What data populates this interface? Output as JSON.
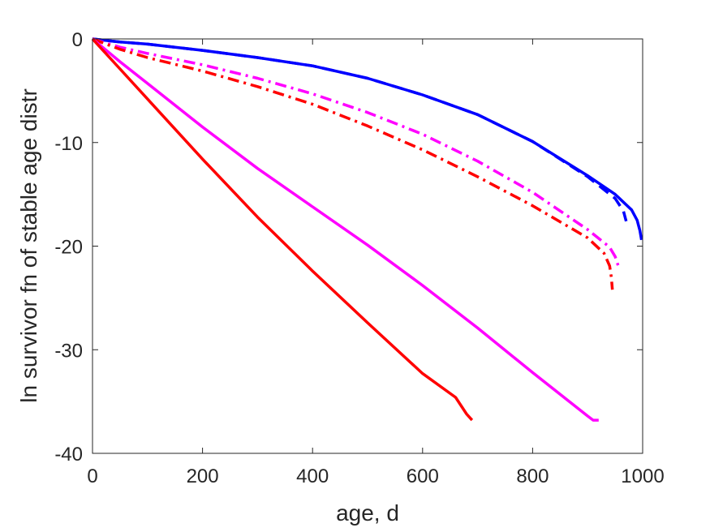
{
  "chart_data": {
    "type": "line",
    "title": "",
    "xlabel": "age, d",
    "ylabel": "ln survivor fn of stable age distr",
    "xlim": [
      0,
      1000
    ],
    "ylim": [
      -40,
      0
    ],
    "xticks": [
      0,
      200,
      400,
      600,
      800,
      1000
    ],
    "yticks": [
      0,
      -10,
      -20,
      -30,
      -40
    ],
    "grid": false,
    "legend": "none",
    "series": [
      {
        "color": "#0000ff",
        "style": "solid",
        "x": [
          0,
          50,
          100,
          200,
          300,
          400,
          500,
          600,
          700,
          800,
          900,
          950,
          980,
          990,
          995,
          998
        ],
        "y": [
          0,
          -0.3,
          -0.5,
          -1.1,
          -1.8,
          -2.6,
          -3.8,
          -5.4,
          -7.3,
          -9.9,
          -13.2,
          -15.0,
          -16.5,
          -17.5,
          -18.5,
          -19.4
        ]
      },
      {
        "color": "#0000ff",
        "style": "dashed",
        "x": [
          0,
          50,
          100,
          200,
          300,
          400,
          500,
          600,
          700,
          800,
          900,
          950,
          965,
          970
        ],
        "y": [
          0,
          -0.3,
          -0.5,
          -1.1,
          -1.8,
          -2.6,
          -3.8,
          -5.4,
          -7.3,
          -9.9,
          -13.3,
          -15.4,
          -16.6,
          -17.6
        ]
      },
      {
        "color": "#ff00ff",
        "style": "dashdot",
        "x": [
          0,
          50,
          100,
          200,
          300,
          400,
          500,
          600,
          700,
          800,
          900,
          940,
          950,
          955,
          958
        ],
        "y": [
          0,
          -0.8,
          -1.4,
          -2.5,
          -3.8,
          -5.3,
          -7.1,
          -9.2,
          -11.8,
          -14.8,
          -18.4,
          -20.1,
          -21.0,
          -21.8,
          -22.2
        ]
      },
      {
        "color": "#ff0000",
        "style": "dashdot",
        "x": [
          0,
          50,
          100,
          200,
          300,
          400,
          500,
          600,
          700,
          800,
          900,
          930,
          940,
          943,
          945
        ],
        "y": [
          0,
          -1.0,
          -1.8,
          -3.1,
          -4.6,
          -6.3,
          -8.4,
          -10.7,
          -13.3,
          -16.1,
          -19.2,
          -20.7,
          -21.9,
          -23.0,
          -24.2
        ]
      },
      {
        "color": "#ff00ff",
        "style": "solid",
        "x": [
          0,
          50,
          100,
          200,
          300,
          400,
          500,
          600,
          700,
          800,
          900,
          910,
          920
        ],
        "y": [
          0,
          -2.2,
          -4.3,
          -8.5,
          -12.5,
          -16.2,
          -19.9,
          -23.8,
          -27.9,
          -32.2,
          -36.4,
          -36.8,
          -36.8
        ]
      },
      {
        "color": "#ff0000",
        "style": "solid",
        "x": [
          0,
          50,
          100,
          200,
          300,
          400,
          500,
          600,
          660,
          680,
          690
        ],
        "y": [
          0,
          -2.9,
          -5.8,
          -11.6,
          -17.2,
          -22.4,
          -27.4,
          -32.3,
          -34.6,
          -36.2,
          -36.8
        ]
      }
    ]
  }
}
